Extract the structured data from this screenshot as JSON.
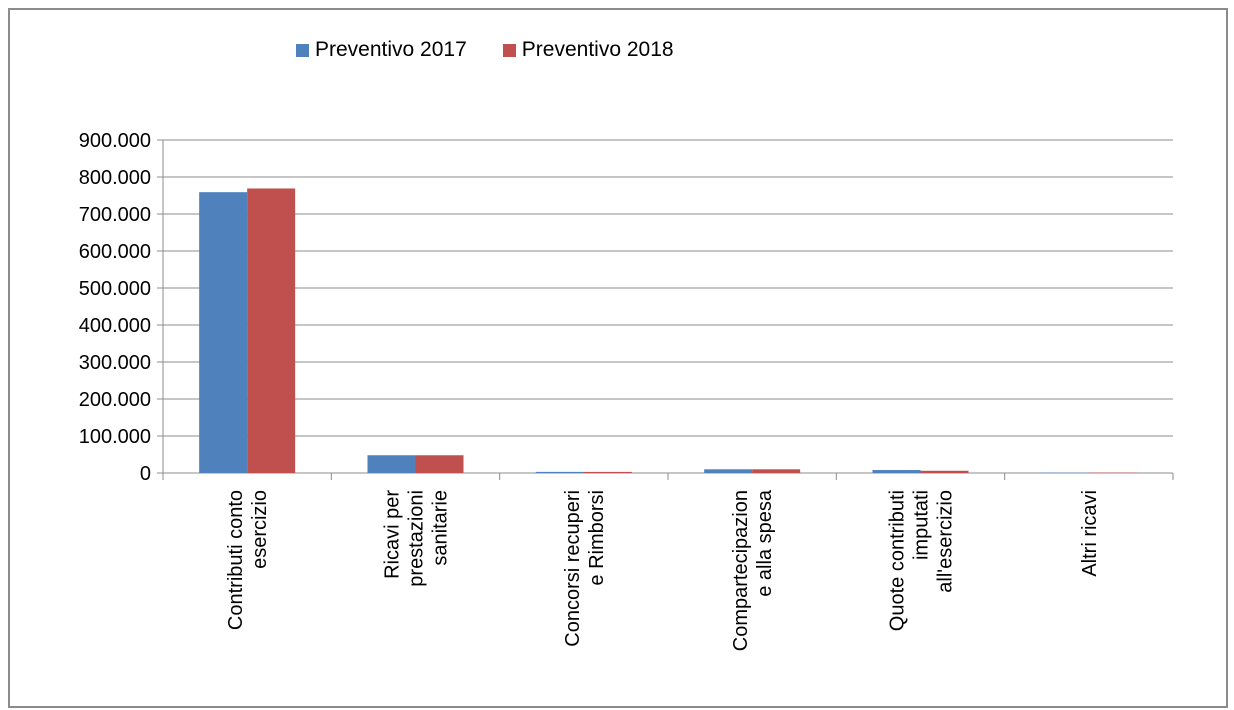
{
  "chart_data": {
    "type": "bar",
    "categories": [
      [
        "Contributi conto",
        "esercizio"
      ],
      [
        "Ricavi per",
        "prestazioni",
        "sanitarie"
      ],
      [
        "Concorsi recuperi",
        "e Rimborsi"
      ],
      [
        "Compartecipazion",
        "e alla spesa"
      ],
      [
        "Quote contributi",
        "imputati",
        "all'esercizio"
      ],
      [
        "Altri ricavi"
      ]
    ],
    "series": [
      {
        "name": "Preventivo 2017",
        "color": "#4f81bd",
        "values": [
          759000,
          48000,
          3000,
          10000,
          8000,
          1000
        ]
      },
      {
        "name": "Preventivo 2018",
        "color": "#c0504d",
        "values": [
          769000,
          48000,
          3000,
          10000,
          6000,
          1000
        ]
      }
    ],
    "y_ticks": [
      "0",
      "100.000",
      "200.000",
      "300.000",
      "400.000",
      "500.000",
      "600.000",
      "700.000",
      "800.000",
      "900.000"
    ],
    "ylim": [
      0,
      900000
    ],
    "grid": true,
    "legend_position": "top",
    "title": "",
    "xlabel": "",
    "ylabel": ""
  }
}
